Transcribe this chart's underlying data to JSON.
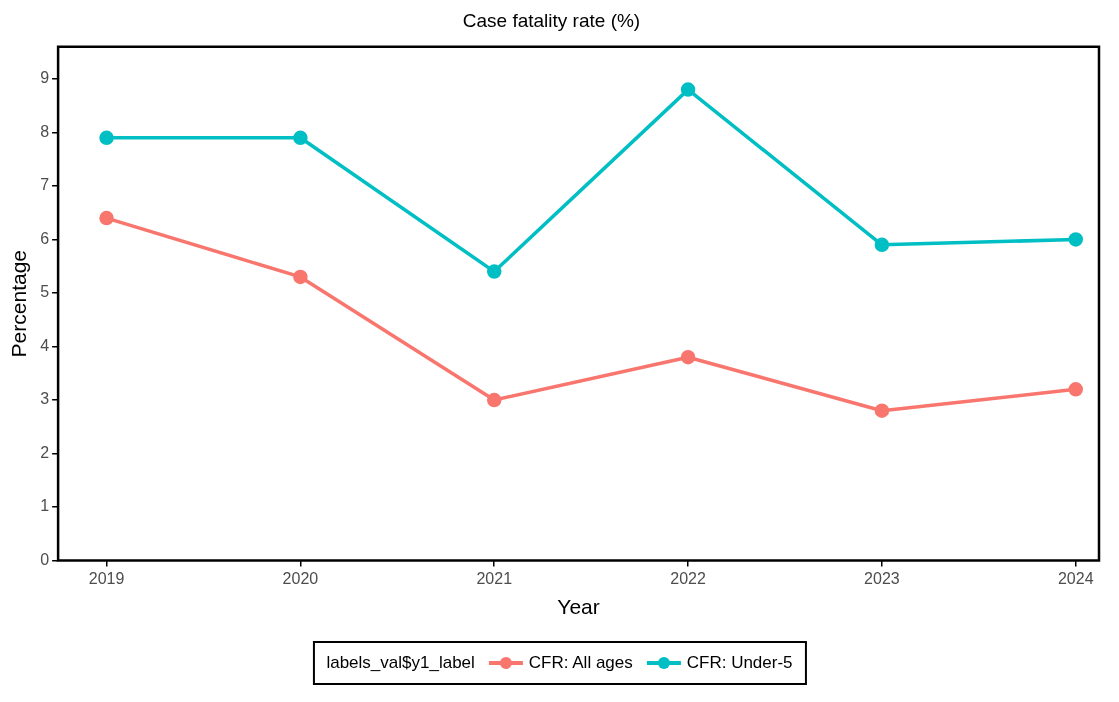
{
  "chart_data": {
    "type": "line",
    "title": "Case fatality rate (%)",
    "xlabel": "Year",
    "ylabel": "Percentage",
    "legend_title": "labels_val$y1_label",
    "legend": "bottom",
    "marker": "circle",
    "line_style": "solid",
    "grid": false,
    "x": [
      2019,
      2020,
      2021,
      2022,
      2023,
      2024
    ],
    "xlim": [
      2018.75,
      2024.12
    ],
    "xticks": [
      2019,
      2020,
      2021,
      2022,
      2023,
      2024
    ],
    "ylim": [
      0,
      9.6
    ],
    "yticks": [
      0,
      1,
      2,
      3,
      4,
      5,
      6,
      7,
      8,
      9
    ],
    "series": [
      {
        "name": "CFR: All ages",
        "color": "#f8766d",
        "values": [
          6.4,
          5.3,
          3.0,
          3.8,
          2.8,
          3.2
        ]
      },
      {
        "name": "CFR: Under-5",
        "color": "#00bfc4",
        "values": [
          7.9,
          7.9,
          5.4,
          8.8,
          5.9,
          6.0
        ]
      }
    ]
  }
}
